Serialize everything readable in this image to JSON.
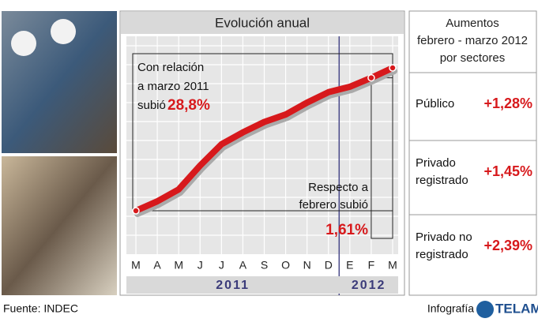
{
  "chart_data": {
    "type": "line",
    "title": "Evolución anual",
    "categories": [
      "M",
      "A",
      "M",
      "J",
      "J",
      "A",
      "S",
      "O",
      "N",
      "D",
      "E",
      "F",
      "M"
    ],
    "series": [
      {
        "name": null,
        "color": "#d7191c",
        "values": [
          100,
          101.9,
          104.3,
          109.1,
          113.4,
          115.8,
          117.9,
          119.4,
          121.8,
          123.9,
          125.0,
          126.8,
          128.8
        ]
      }
    ],
    "years": [
      "2011",
      "2012"
    ],
    "annotation_total": {
      "lines": [
        "Con relación",
        "a marzo 2011",
        "subió"
      ],
      "highlight": "28,8%"
    },
    "annotation_month": {
      "lines": [
        "Respecto a",
        "febrero subió"
      ],
      "highlight": "1,61%"
    },
    "grid": true
  },
  "sectors": {
    "title": [
      "Aumentos",
      "febrero - marzo 2012",
      "por sectores"
    ],
    "rows": [
      {
        "label": [
          "Público"
        ],
        "value": "+1,28%"
      },
      {
        "label": [
          "Privado",
          "registrado"
        ],
        "value": "+1,45%"
      },
      {
        "label": [
          "Privado no",
          "registrado"
        ],
        "value": "+2,39%"
      }
    ]
  },
  "footer": {
    "source": "Fuente: INDEC",
    "credit": "Infografía",
    "brand": "TELAM"
  }
}
